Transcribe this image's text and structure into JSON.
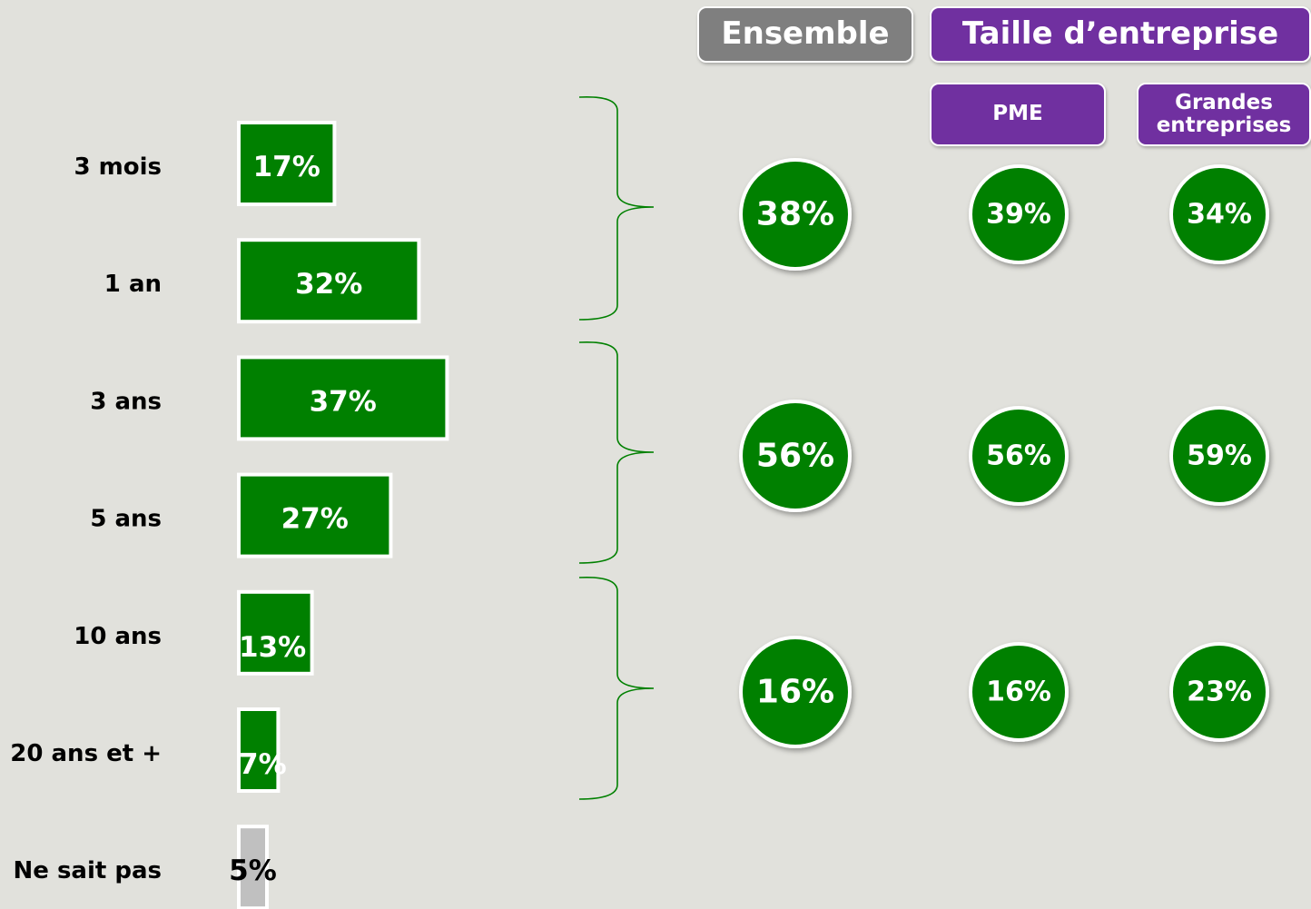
{
  "chart_data": {
    "type": "bar",
    "orientation": "horizontal",
    "categories": [
      "3 mois",
      "1 an",
      "3 ans",
      "5 ans",
      "10 ans",
      "20 ans et +",
      "Ne sait pas"
    ],
    "values": [
      17,
      32,
      37,
      27,
      13,
      7,
      5
    ],
    "value_labels": [
      "17%",
      "32%",
      "37%",
      "27%",
      "13%",
      "7%",
      "5%"
    ],
    "colors": [
      "#008000",
      "#008000",
      "#008000",
      "#008000",
      "#008000",
      "#008000",
      "#c0c0c0"
    ],
    "label_colors": [
      "#ffffff",
      "#ffffff",
      "#ffffff",
      "#ffffff",
      "#ffffff",
      "#ffffff",
      "#000000"
    ]
  },
  "summary": {
    "headers": [
      "Ensemble",
      "Taille d’entreprise"
    ],
    "columns": [
      "PME",
      "Grandes entreprises"
    ],
    "color": "#008000",
    "rows": [
      {
        "values": [
          38,
          39,
          34
        ],
        "value_labels": [
          "38%",
          "39%",
          "34%"
        ]
      },
      {
        "values": [
          56,
          56,
          59
        ],
        "value_labels": [
          "56%",
          "56%",
          "59%"
        ]
      },
      {
        "values": [
          16,
          16,
          23
        ],
        "value_labels": [
          "16%",
          "16%",
          "23%"
        ]
      }
    ]
  }
}
